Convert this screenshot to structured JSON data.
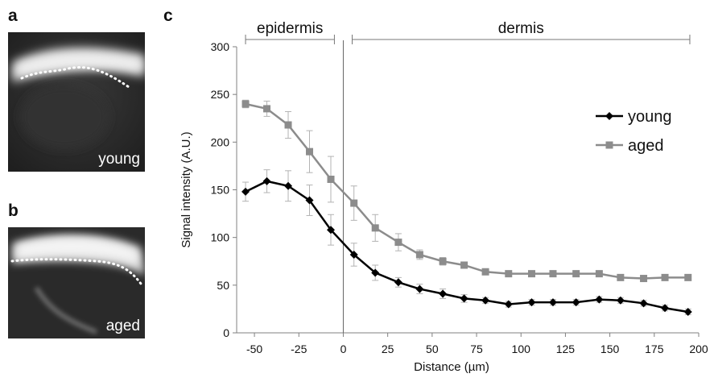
{
  "panels": {
    "a": {
      "letter": "a",
      "label": "young"
    },
    "b": {
      "letter": "b",
      "label": "aged"
    },
    "c": {
      "letter": "c"
    }
  },
  "colors": {
    "young": "#000000",
    "aged": "#8c8c8c",
    "errorbar": "#b3b3b3",
    "axis": "#808080"
  },
  "chart_data": {
    "type": "line",
    "xlabel": "Distance (µm)",
    "ylabel": "Signal intensity (A.U.)",
    "xlim": [
      -60,
      200
    ],
    "ylim": [
      0,
      300
    ],
    "xticks": [
      -50,
      -25,
      0,
      25,
      50,
      75,
      100,
      125,
      150,
      175,
      200
    ],
    "yticks": [
      0,
      50,
      100,
      150,
      200,
      250,
      300
    ],
    "grid": false,
    "legend": "right",
    "vline_x": 0,
    "regions": [
      {
        "label": "epidermis",
        "from": -55,
        "to": -5
      },
      {
        "label": "dermis",
        "from": 5,
        "to": 195
      }
    ],
    "series": [
      {
        "name": "young",
        "marker": "diamond",
        "x": [
          -55,
          -43,
          -31,
          -19,
          -7,
          6,
          18,
          31,
          43,
          56,
          68,
          80,
          93,
          106,
          118,
          131,
          144,
          156,
          169,
          181,
          194
        ],
        "values": [
          148,
          159,
          154,
          139,
          108,
          82,
          63,
          53,
          46,
          41,
          36,
          34,
          30,
          32,
          32,
          32,
          35,
          34,
          31,
          26,
          22
        ],
        "errors": [
          10,
          12,
          16,
          16,
          16,
          12,
          8,
          5,
          5,
          5,
          4,
          3,
          3,
          3,
          3,
          3,
          3,
          3,
          3,
          3,
          3
        ]
      },
      {
        "name": "aged",
        "marker": "square",
        "x": [
          -55,
          -43,
          -31,
          -19,
          -7,
          6,
          18,
          31,
          43,
          56,
          68,
          80,
          93,
          106,
          118,
          131,
          144,
          156,
          169,
          181,
          194
        ],
        "values": [
          240,
          235,
          218,
          190,
          161,
          136,
          110,
          95,
          82,
          75,
          71,
          64,
          62,
          62,
          62,
          62,
          62,
          58,
          57,
          58,
          58
        ],
        "errors": [
          4,
          8,
          14,
          22,
          24,
          18,
          14,
          9,
          5,
          4,
          3,
          3,
          3,
          3,
          3,
          3,
          3,
          3,
          3,
          3,
          3
        ]
      }
    ]
  }
}
